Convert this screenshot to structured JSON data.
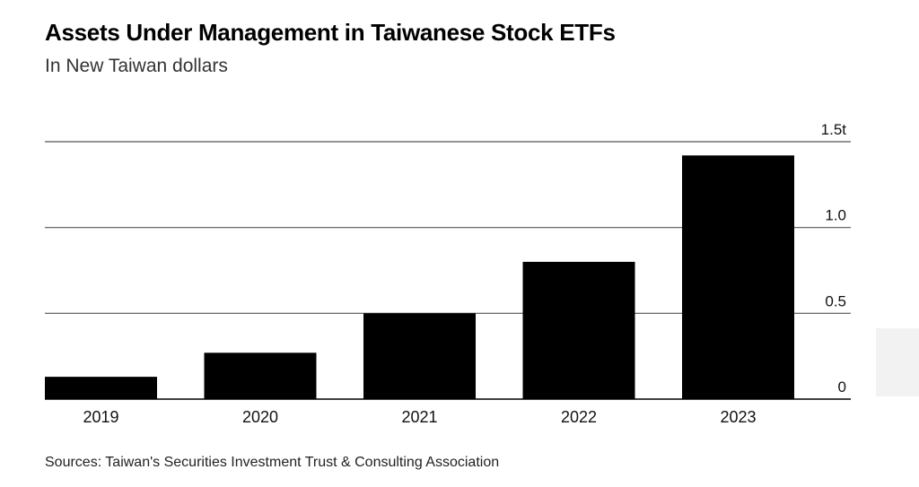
{
  "title": "Assets Under Management in Taiwanese Stock ETFs",
  "subtitle": "In New Taiwan dollars",
  "source": "Sources: Taiwan's Securities Investment Trust & Consulting Association",
  "colors": {
    "bar": "#000000",
    "gridline": "#555555",
    "background": "#ffffff"
  },
  "chart_data": {
    "type": "bar",
    "categories": [
      "2019",
      "2020",
      "2021",
      "2022",
      "2023"
    ],
    "values": [
      0.13,
      0.27,
      0.5,
      0.8,
      1.42
    ],
    "ylim": [
      0,
      1.5
    ],
    "yticks": [
      0,
      0.5,
      1.0,
      1.5
    ],
    "ytick_labels": [
      "0",
      "0.5",
      "1.0",
      "1.5t"
    ],
    "xlabel": "",
    "ylabel": "",
    "grid": true,
    "y_axis_side": "right"
  }
}
